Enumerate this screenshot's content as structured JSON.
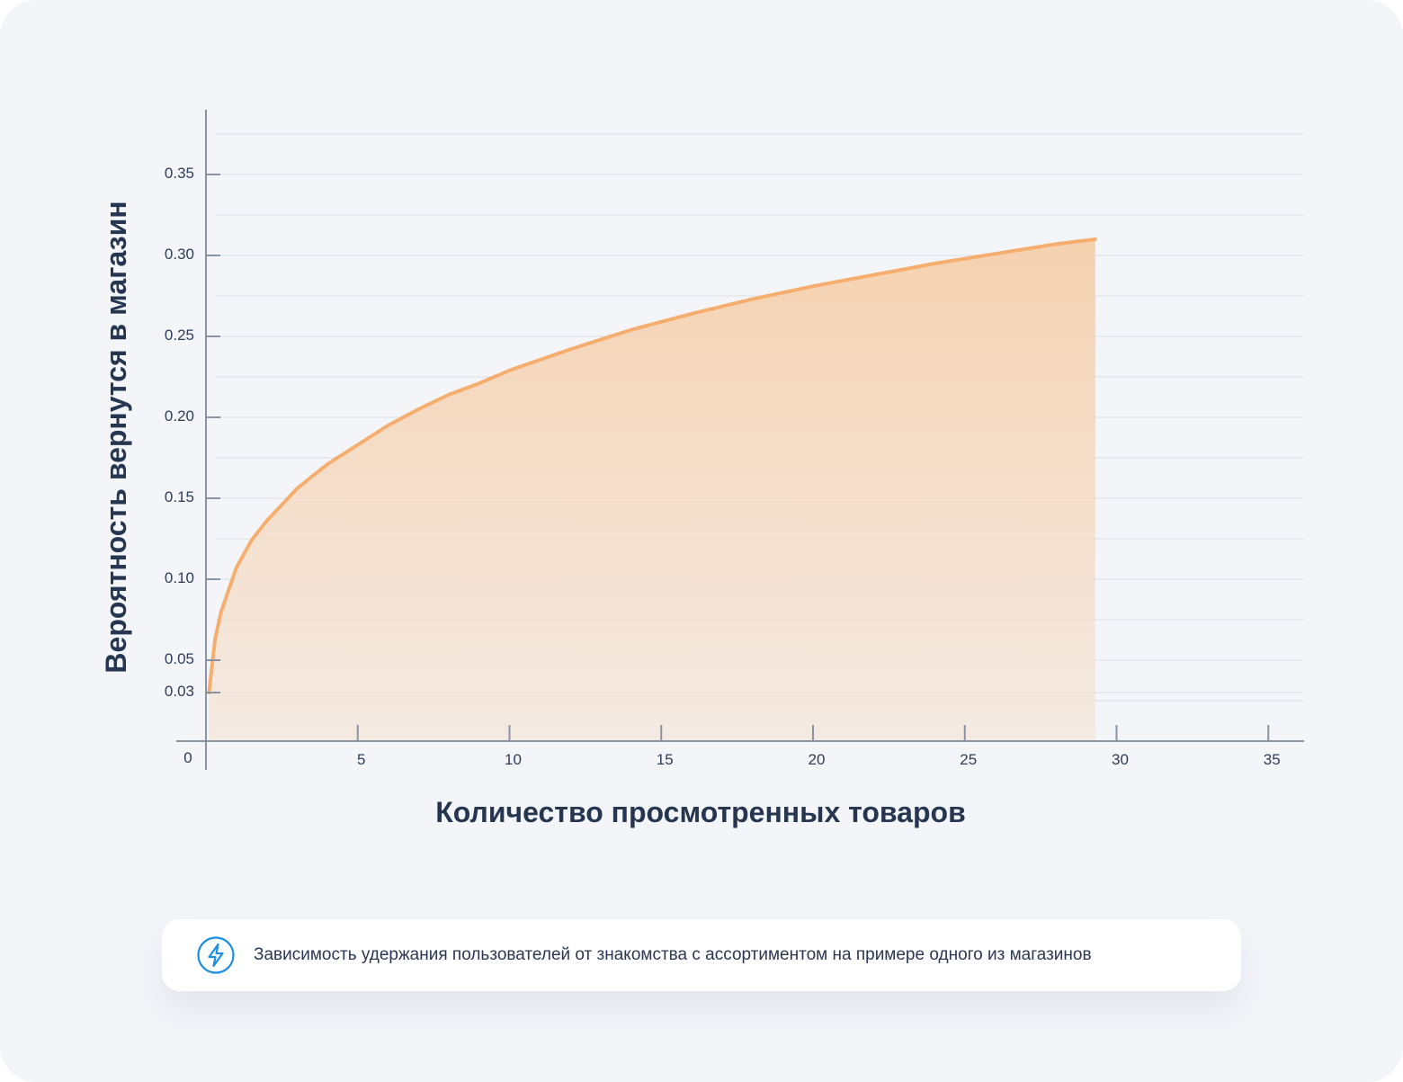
{
  "chart_data": {
    "type": "area",
    "xlabel": "Количество просмотренных товаров",
    "ylabel": "Вероятность вернутся в магазин",
    "xlim": [
      0,
      37
    ],
    "ylim": [
      0,
      0.39
    ],
    "x_ticks": [
      "0",
      "5",
      "10",
      "15",
      "20",
      "25",
      "30",
      "35"
    ],
    "y_ticks": [
      "0.03",
      "0.05",
      "0.10",
      "0.15",
      "0.20",
      "0.25",
      "0.30",
      "0.35"
    ],
    "grid": true,
    "series": [
      {
        "x": [
          0.1,
          0.3,
          0.5,
          1,
          1.5,
          2,
          3,
          4,
          5,
          6,
          7,
          8,
          9,
          10,
          12,
          14,
          16,
          18,
          20,
          22,
          24,
          26,
          28,
          29.3
        ],
        "y": [
          0.03,
          0.063,
          0.08,
          0.107,
          0.124,
          0.136,
          0.156,
          0.171,
          0.183,
          0.195,
          0.205,
          0.214,
          0.221,
          0.229,
          0.242,
          0.254,
          0.264,
          0.273,
          0.281,
          0.288,
          0.295,
          0.301,
          0.307,
          0.31
        ]
      }
    ],
    "colors": {
      "line": "#f6ae6f",
      "fill": "#f5cfab",
      "grid": "#e3e6ec",
      "axis": "#8a93a3"
    }
  },
  "caption": {
    "icon": "lightning-icon",
    "icon_color": "#1d8fe0",
    "text": "Зависимость удержания пользователей от знакомства с ассортиментом на примере одного из магазинов"
  }
}
